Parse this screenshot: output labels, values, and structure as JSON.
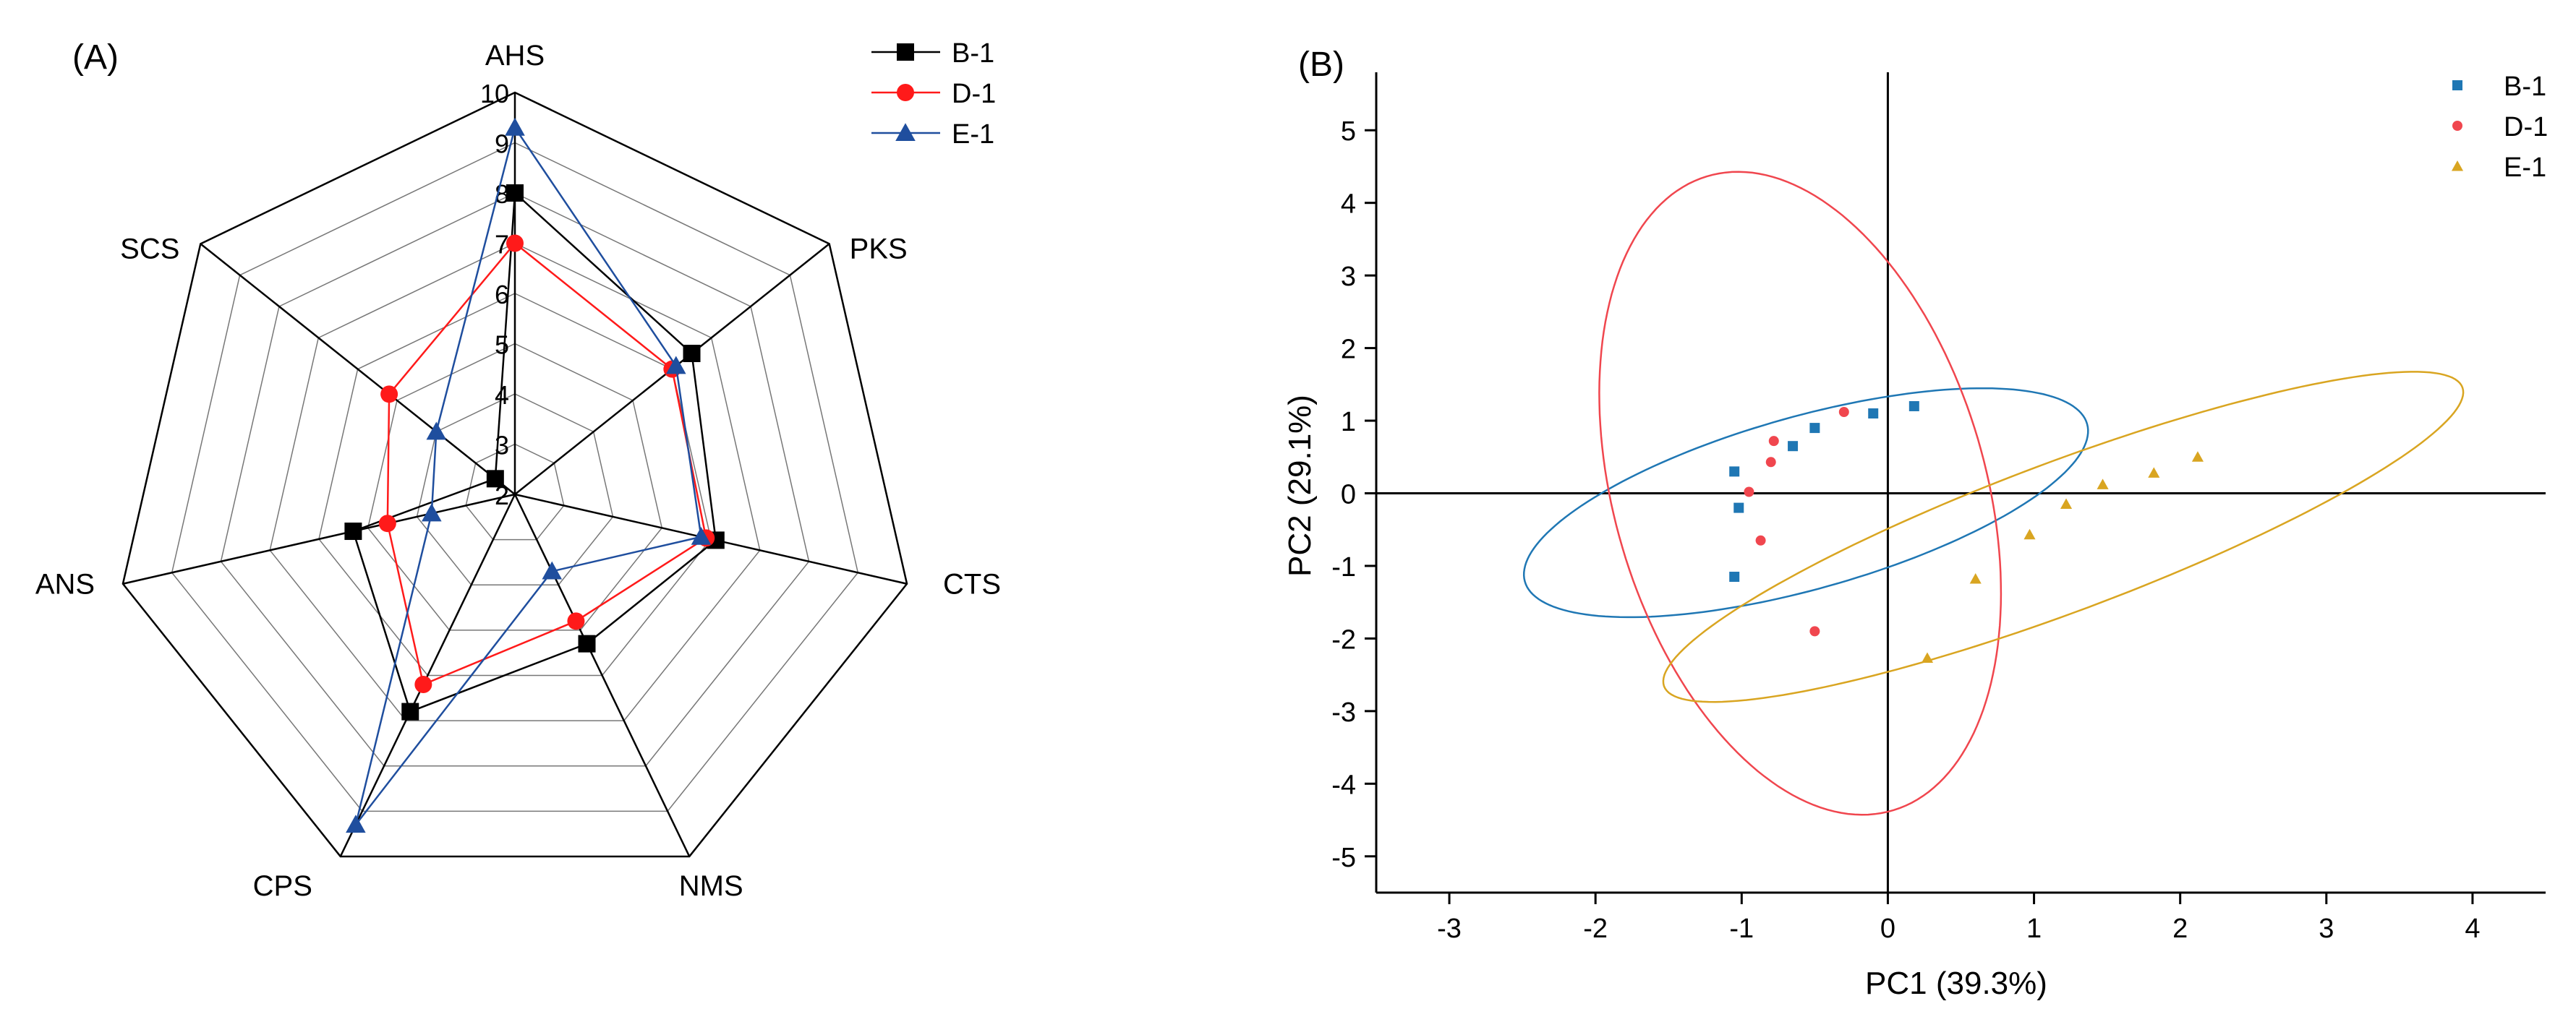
{
  "chart_data": [
    {
      "type": "radar",
      "panel_label": "(A)",
      "axes": [
        "AHS",
        "PKS",
        "CTS",
        "NMS",
        "CPS",
        "ANS",
        "SCS"
      ],
      "range": [
        2,
        10
      ],
      "ticks": [
        2,
        3,
        4,
        5,
        6,
        7,
        8,
        9,
        10
      ],
      "legend_position": "top-right",
      "series": [
        {
          "name": "B-1",
          "color": "#000000",
          "marker": "square",
          "values": [
            8.0,
            6.5,
            6.1,
            5.3,
            6.8,
            5.3,
            2.5
          ]
        },
        {
          "name": "D-1",
          "color": "#ff1a1a",
          "marker": "circle",
          "values": [
            7.0,
            6.0,
            5.9,
            4.8,
            6.2,
            4.6,
            5.2
          ]
        },
        {
          "name": "E-1",
          "color": "#1f4e9e",
          "marker": "triangle",
          "values": [
            9.3,
            6.1,
            5.8,
            3.7,
            9.3,
            3.7,
            4.0
          ]
        }
      ]
    },
    {
      "type": "scatter",
      "panel_label": "(B)",
      "xlabel": "PC1 (39.3%)",
      "ylabel": "PC2 (29.1%)",
      "xlim": [
        -3.5,
        4.5
      ],
      "ylim": [
        -5.5,
        5.5
      ],
      "xticks": [
        -3,
        -2,
        -1,
        0,
        1,
        2,
        3,
        4
      ],
      "yticks": [
        -5,
        -4,
        -3,
        -2,
        -1,
        0,
        1,
        2,
        3,
        4,
        5
      ],
      "xtick_labels": [
        "-3",
        "-2",
        "-1",
        "0",
        "1",
        "2",
        "3",
        "4"
      ],
      "ytick_labels": [
        "-5",
        "-4",
        "-3",
        "-2",
        "-1",
        "0",
        "1",
        "2",
        "3",
        "4",
        "5"
      ],
      "legend_position": "top-right",
      "series": [
        {
          "name": "B-1",
          "color": "#1f77b4",
          "marker": "square",
          "points": [
            [
              -1.05,
              0.3
            ],
            [
              -1.02,
              -0.2
            ],
            [
              -1.05,
              -1.15
            ],
            [
              -0.65,
              0.65
            ],
            [
              -0.5,
              0.9
            ],
            [
              -0.1,
              1.1
            ],
            [
              0.18,
              1.2
            ]
          ],
          "ellipse": {
            "cx": -0.56,
            "cy": -0.13,
            "rx": 2.26,
            "ry": 1.05,
            "angle_deg": 36
          }
        },
        {
          "name": "D-1",
          "color": "#f0464e",
          "marker": "circle",
          "points": [
            [
              -0.95,
              0.02
            ],
            [
              -0.8,
              0.43
            ],
            [
              -0.78,
              0.72
            ],
            [
              -0.3,
              1.12
            ],
            [
              -0.87,
              -0.65
            ],
            [
              -0.5,
              -1.9
            ]
          ],
          "ellipse": {
            "cx": -0.6,
            "cy": 0.0,
            "rx": 4.45,
            "ry": 1.3,
            "angle_deg": 96
          }
        },
        {
          "name": "E-1",
          "color": "#d9a521",
          "marker": "triangle",
          "points": [
            [
              0.27,
              -2.27
            ],
            [
              0.6,
              -1.18
            ],
            [
              0.97,
              -0.57
            ],
            [
              1.22,
              -0.15
            ],
            [
              1.47,
              0.12
            ],
            [
              1.82,
              0.28
            ],
            [
              2.12,
              0.5
            ]
          ],
          "ellipse": {
            "cx": 1.2,
            "cy": -0.6,
            "rx": 3.45,
            "ry": 0.87,
            "angle_deg": 39
          }
        }
      ]
    }
  ]
}
